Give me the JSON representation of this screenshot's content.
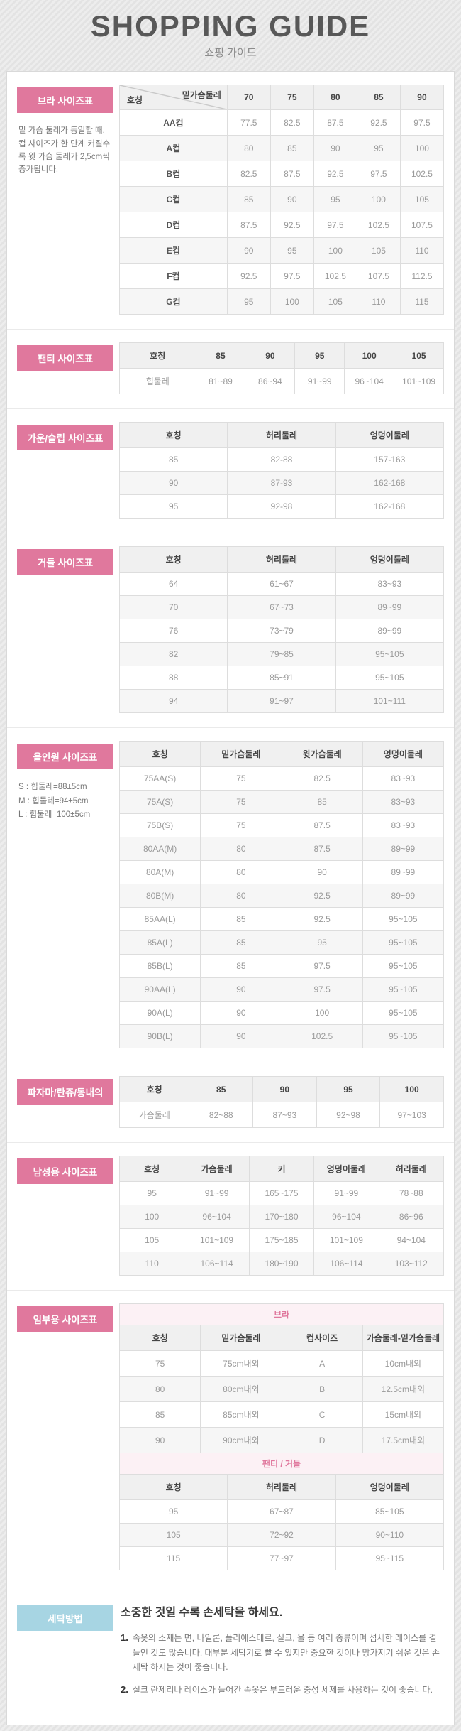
{
  "header": {
    "title": "SHOPPING GUIDE",
    "subtitle": "쇼핑 가이드"
  },
  "colors": {
    "accent_pink": "#e0789d",
    "group_row_pink": "#fcf1f5",
    "accent_blue": "#a7d5e3",
    "header_gray": "#f0f0f0"
  },
  "sections": [
    {
      "id": "bra",
      "label": "브라 사이즈표",
      "note": "밑 가슴 둘레가 동일할 때, 컵 사이즈가 한 단계 커질수록 윗 가슴 둘레가 2,5cm씩 증가됩니다.",
      "tables": [
        {
          "diagonal": {
            "top": "밑가슴둘레",
            "bottom": "호칭"
          },
          "header": [
            "",
            "70",
            "75",
            "80",
            "85",
            "90"
          ],
          "rows": [
            [
              "AA컵",
              "77.5",
              "82.5",
              "87.5",
              "92.5",
              "97.5"
            ],
            [
              "A컵",
              "80",
              "85",
              "90",
              "95",
              "100"
            ],
            [
              "B컵",
              "82.5",
              "87.5",
              "92.5",
              "97.5",
              "102.5"
            ],
            [
              "C컵",
              "85",
              "90",
              "95",
              "100",
              "105"
            ],
            [
              "D컵",
              "87.5",
              "92.5",
              "97.5",
              "102.5",
              "107.5"
            ],
            [
              "E컵",
              "90",
              "95",
              "100",
              "105",
              "110"
            ],
            [
              "F컵",
              "92.5",
              "97.5",
              "102.5",
              "107.5",
              "112.5"
            ],
            [
              "G컵",
              "95",
              "100",
              "105",
              "110",
              "115"
            ]
          ]
        }
      ]
    },
    {
      "id": "panty",
      "label": "팬티 사이즈표",
      "tables": [
        {
          "header": [
            "호칭",
            "85",
            "90",
            "95",
            "100",
            "105"
          ],
          "rows": [
            [
              "힙둘레",
              "81~89",
              "86~94",
              "91~99",
              "96~104",
              "101~109"
            ]
          ]
        }
      ]
    },
    {
      "id": "gown",
      "label": "가운/슬립 사이즈표",
      "tables": [
        {
          "header": [
            "호칭",
            "허리둘레",
            "엉덩이둘레"
          ],
          "rows": [
            [
              "85",
              "82-88",
              "157-163"
            ],
            [
              "90",
              "87-93",
              "162-168"
            ],
            [
              "95",
              "92-98",
              "162-168"
            ]
          ]
        }
      ]
    },
    {
      "id": "girdle",
      "label": "거들 사이즈표",
      "tables": [
        {
          "header": [
            "호칭",
            "허리둘레",
            "엉덩이둘레"
          ],
          "rows": [
            [
              "64",
              "61~67",
              "83~93"
            ],
            [
              "70",
              "67~73",
              "89~99"
            ],
            [
              "76",
              "73~79",
              "89~99"
            ],
            [
              "82",
              "79~85",
              "95~105"
            ],
            [
              "88",
              "85~91",
              "95~105"
            ],
            [
              "94",
              "91~97",
              "101~111"
            ]
          ]
        }
      ]
    },
    {
      "id": "allinone",
      "label": "올인원 사이즈표",
      "notes": [
        "S : 힙둘레=88±5cm",
        "M : 힙둘레=94±5cm",
        "L : 힙둘레=100±5cm"
      ],
      "tables": [
        {
          "header": [
            "호칭",
            "밑가슴둘레",
            "윗가슴둘레",
            "엉덩이둘레"
          ],
          "rows": [
            [
              "75AA(S)",
              "75",
              "82.5",
              "83~93"
            ],
            [
              "75A(S)",
              "75",
              "85",
              "83~93"
            ],
            [
              "75B(S)",
              "75",
              "87.5",
              "83~93"
            ],
            [
              "80AA(M)",
              "80",
              "87.5",
              "89~99"
            ],
            [
              "80A(M)",
              "80",
              "90",
              "89~99"
            ],
            [
              "80B(M)",
              "80",
              "92.5",
              "89~99"
            ],
            [
              "85AA(L)",
              "85",
              "92.5",
              "95~105"
            ],
            [
              "85A(L)",
              "85",
              "95",
              "95~105"
            ],
            [
              "85B(L)",
              "85",
              "97.5",
              "95~105"
            ],
            [
              "90AA(L)",
              "90",
              "97.5",
              "95~105"
            ],
            [
              "90A(L)",
              "90",
              "100",
              "95~105"
            ],
            [
              "90B(L)",
              "90",
              "102.5",
              "95~105"
            ]
          ]
        }
      ]
    },
    {
      "id": "pajama",
      "label": "파자마/란쥬/동내의",
      "tables": [
        {
          "header": [
            "호칭",
            "85",
            "90",
            "95",
            "100"
          ],
          "rows": [
            [
              "가슴둘레",
              "82~88",
              "87~93",
              "92~98",
              "97~103"
            ]
          ]
        }
      ]
    },
    {
      "id": "men",
      "label": "남성용 사이즈표",
      "tables": [
        {
          "header": [
            "호칭",
            "가슴둘레",
            "키",
            "엉덩이둘레",
            "허리둘레"
          ],
          "rows": [
            [
              "95",
              "91~99",
              "165~175",
              "91~99",
              "78~88"
            ],
            [
              "100",
              "96~104",
              "170~180",
              "96~104",
              "86~96"
            ],
            [
              "105",
              "101~109",
              "175~185",
              "101~109",
              "94~104"
            ],
            [
              "110",
              "106~114",
              "180~190",
              "106~114",
              "103~112"
            ]
          ]
        }
      ]
    },
    {
      "id": "maternity",
      "label": "임부용 사이즈표",
      "tables": [
        {
          "group": "브라",
          "header": [
            "호칭",
            "밑가슴둘레",
            "컵사이즈",
            "가슴둘레-밑가슴둘레"
          ],
          "rows": [
            [
              "75",
              "75cm내외",
              "A",
              "10cm내외"
            ],
            [
              "80",
              "80cm내외",
              "B",
              "12.5cm내외"
            ],
            [
              "85",
              "85cm내외",
              "C",
              "15cm내외"
            ],
            [
              "90",
              "90cm내외",
              "D",
              "17.5cm내외"
            ]
          ]
        },
        {
          "group": "팬티 / 거들",
          "header": [
            "호칭",
            "허리둘레",
            "엉덩이둘레"
          ],
          "rows": [
            [
              "95",
              "67~87",
              "85~105"
            ],
            [
              "105",
              "72~92",
              "90~110"
            ],
            [
              "115",
              "77~97",
              "95~115"
            ]
          ]
        }
      ]
    }
  ],
  "washing": {
    "label": "세탁방법",
    "title": "소중한 것일 수록 손세탁을 하세요.",
    "items": [
      {
        "no": "1.",
        "text": "속옷의 소재는 면, 나일론, 폴리에스테르, 실크, 울 등 여러 종류이며 섬세한 레이스를 곁들인 것도 많습니다. 대부분 세탁기로 빨 수 있지만 중요한 것이나 망가지기 쉬운 것은 손세탁 하시는 것이 좋습니다."
      },
      {
        "no": "2.",
        "text": "실크 란제리나 레이스가 들어간 속옷은 부드러운 중성 세제를 사용하는 것이 좋습니다."
      }
    ]
  }
}
